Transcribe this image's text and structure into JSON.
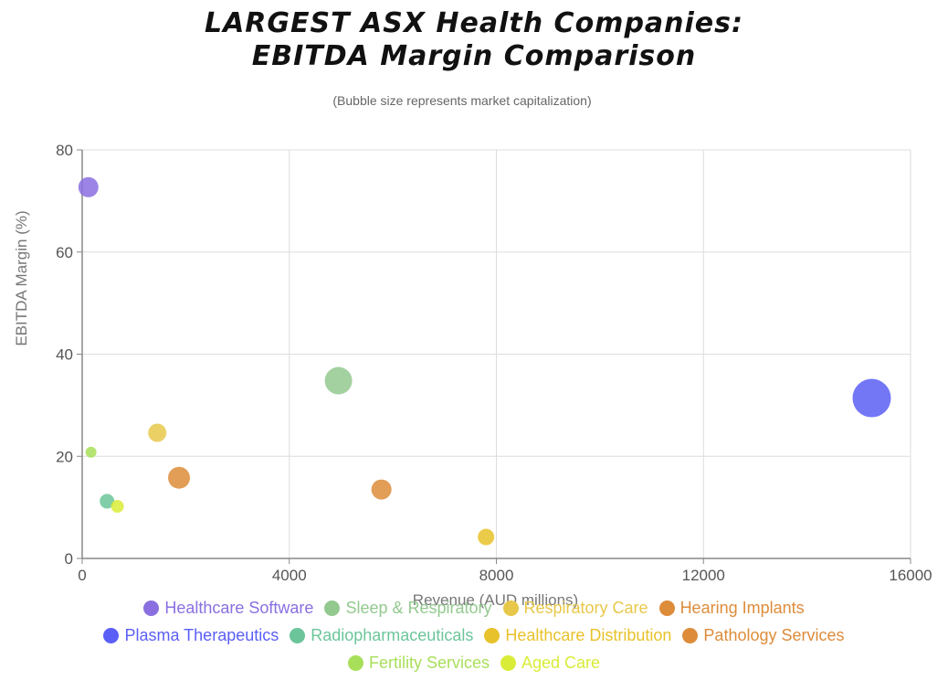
{
  "chart_data": {
    "type": "scatter",
    "title_line1": "LARGEST ASX Health Companies:",
    "title_line2": "EBITDA Margin Comparison",
    "subtitle": "(Bubble size represents market capitalization)",
    "xlabel": "Revenue (AUD millions)",
    "ylabel": "EBITDA Margin (%)",
    "xlim": [
      0,
      16000
    ],
    "ylim": [
      0,
      80
    ],
    "xticks": [
      "0",
      "4000",
      "8000",
      "12000",
      "16000"
    ],
    "yticks": [
      "0",
      "20",
      "40",
      "60",
      "80"
    ],
    "grid": true,
    "legend_position": "bottom",
    "series": [
      {
        "name": "Healthcare Software",
        "color": "#8a6fe0",
        "points": [
          {
            "x": 120,
            "y": 72.7,
            "size": 11
          }
        ]
      },
      {
        "name": "Sleep & Respiratory",
        "color": "#93c98f",
        "points": [
          {
            "x": 4950,
            "y": 34.8,
            "size": 15
          }
        ]
      },
      {
        "name": "Respiratory Care",
        "color": "#e8c84a",
        "points": [
          {
            "x": 1450,
            "y": 24.6,
            "size": 10
          }
        ]
      },
      {
        "name": "Hearing Implants",
        "color": "#dd8c3a",
        "points": [
          {
            "x": 1870,
            "y": 15.8,
            "size": 12
          }
        ]
      },
      {
        "name": "Plasma Therapeutics",
        "color": "#5b5ff5",
        "points": [
          {
            "x": 15250,
            "y": 31.4,
            "size": 21
          }
        ]
      },
      {
        "name": "Radiopharmaceuticals",
        "color": "#6cc59a",
        "points": [
          {
            "x": 480,
            "y": 11.2,
            "size": 8
          }
        ]
      },
      {
        "name": "Healthcare Distribution",
        "color": "#e8c22a",
        "points": [
          {
            "x": 7800,
            "y": 4.2,
            "size": 9
          }
        ]
      },
      {
        "name": "Pathology Services",
        "color": "#dd8c3a",
        "points": [
          {
            "x": 5780,
            "y": 13.5,
            "size": 11
          }
        ]
      },
      {
        "name": "Fertility Services",
        "color": "#a8df5a",
        "points": [
          {
            "x": 170,
            "y": 20.8,
            "size": 6
          }
        ]
      },
      {
        "name": "Aged Care",
        "color": "#d9ec38",
        "points": [
          {
            "x": 680,
            "y": 10.2,
            "size": 7
          }
        ]
      }
    ],
    "legend_rows": [
      [
        0,
        1,
        2,
        3
      ],
      [
        4,
        5,
        6,
        7
      ],
      [
        8,
        9
      ]
    ]
  }
}
